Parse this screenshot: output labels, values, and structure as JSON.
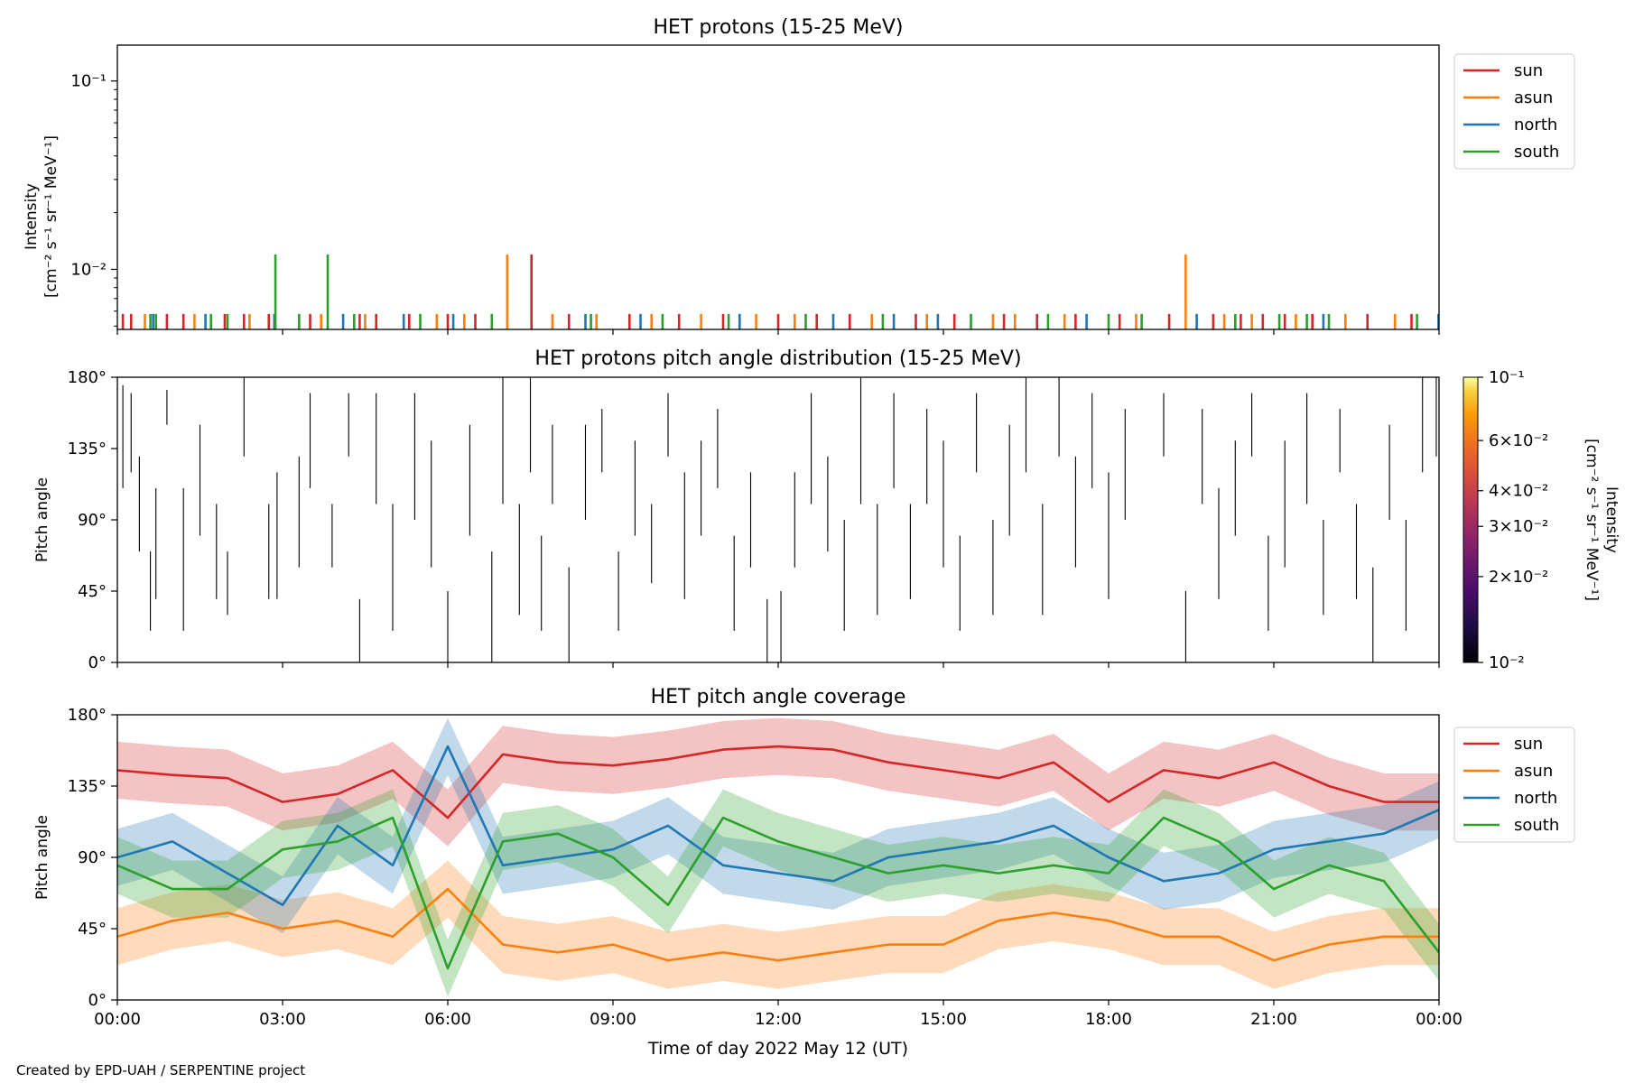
{
  "footer": "Created by EPD-UAH / SERPENTINE project",
  "xaxis": {
    "label": "Time of day 2022 May 12 (UT)",
    "range_hours": [
      0,
      24
    ],
    "ticks": [
      0,
      3,
      6,
      9,
      12,
      15,
      18,
      21,
      24
    ],
    "tick_labels": [
      "00:00",
      "03:00",
      "06:00",
      "09:00",
      "12:00",
      "15:00",
      "18:00",
      "21:00",
      "00:00"
    ]
  },
  "chart_data": [
    {
      "type": "line",
      "title": "HET protons (15-25 MeV)",
      "ylabel_lines": [
        "Intensity",
        "[cm⁻² s⁻¹ sr⁻¹ MeV⁻¹]"
      ],
      "yscale": "log",
      "ylim": [
        0.0048,
        0.155
      ],
      "ytick_labels": [
        {
          "value": 0.1,
          "label": "10⁻¹"
        },
        {
          "value": 0.01,
          "label": "10⁻²"
        }
      ],
      "legend_position": "outside-right-top",
      "baseline_level": 0.0057,
      "series": [
        {
          "name": "sun",
          "color": "#d62728",
          "spikes": [
            [
              0.1,
              0.0058
            ],
            [
              0.25,
              0.0058
            ],
            [
              0.9,
              0.0058
            ],
            [
              1.2,
              0.0058
            ],
            [
              1.95,
              0.0058
            ],
            [
              2.3,
              0.0058
            ],
            [
              2.75,
              0.0058
            ],
            [
              3.5,
              0.0058
            ],
            [
              4.4,
              0.0058
            ],
            [
              4.7,
              0.0058
            ],
            [
              5.3,
              0.0058
            ],
            [
              6.0,
              0.0058
            ],
            [
              6.5,
              0.0058
            ],
            [
              7.52,
              0.012
            ],
            [
              8.2,
              0.0058
            ],
            [
              9.3,
              0.0058
            ],
            [
              10.2,
              0.0058
            ],
            [
              11.0,
              0.0058
            ],
            [
              12.0,
              0.0058
            ],
            [
              12.7,
              0.0058
            ],
            [
              13.3,
              0.0058
            ],
            [
              14.5,
              0.0058
            ],
            [
              15.2,
              0.0058
            ],
            [
              16.1,
              0.0058
            ],
            [
              16.7,
              0.0058
            ],
            [
              17.4,
              0.0058
            ],
            [
              18.2,
              0.0058
            ],
            [
              19.1,
              0.0058
            ],
            [
              19.9,
              0.0058
            ],
            [
              20.4,
              0.0058
            ],
            [
              20.8,
              0.0058
            ],
            [
              21.2,
              0.0058
            ],
            [
              21.7,
              0.0058
            ],
            [
              22.7,
              0.0058
            ],
            [
              23.5,
              0.0058
            ]
          ]
        },
        {
          "name": "asun",
          "color": "#ff7f0e",
          "spikes": [
            [
              0.5,
              0.0058
            ],
            [
              1.4,
              0.0058
            ],
            [
              2.4,
              0.0058
            ],
            [
              3.7,
              0.0058
            ],
            [
              4.5,
              0.0058
            ],
            [
              5.8,
              0.0058
            ],
            [
              6.3,
              0.0058
            ],
            [
              7.08,
              0.012
            ],
            [
              7.9,
              0.0058
            ],
            [
              8.7,
              0.0058
            ],
            [
              9.7,
              0.0058
            ],
            [
              10.6,
              0.0058
            ],
            [
              11.6,
              0.0058
            ],
            [
              12.3,
              0.0058
            ],
            [
              13.7,
              0.0058
            ],
            [
              14.7,
              0.0058
            ],
            [
              15.9,
              0.0058
            ],
            [
              16.3,
              0.0058
            ],
            [
              17.2,
              0.0058
            ],
            [
              18.5,
              0.0058
            ],
            [
              19.4,
              0.012
            ],
            [
              20.1,
              0.0058
            ],
            [
              20.6,
              0.0058
            ],
            [
              21.4,
              0.0058
            ],
            [
              22.3,
              0.0058
            ],
            [
              23.2,
              0.0058
            ]
          ]
        },
        {
          "name": "north",
          "color": "#1f77b4",
          "spikes": [
            [
              0.65,
              0.0058
            ],
            [
              1.6,
              0.0058
            ],
            [
              2.85,
              0.0058
            ],
            [
              4.1,
              0.0058
            ],
            [
              5.2,
              0.0058
            ],
            [
              6.1,
              0.0058
            ],
            [
              8.5,
              0.0058
            ],
            [
              9.5,
              0.0058
            ],
            [
              11.3,
              0.0058
            ],
            [
              13.0,
              0.0058
            ],
            [
              14.1,
              0.0058
            ],
            [
              14.9,
              0.0058
            ],
            [
              17.6,
              0.0058
            ],
            [
              19.6,
              0.0058
            ],
            [
              21.9,
              0.0058
            ],
            [
              23.99,
              0.0058
            ]
          ]
        },
        {
          "name": "south",
          "color": "#2ca02c",
          "spikes": [
            [
              0.6,
              0.0058
            ],
            [
              0.7,
              0.0058
            ],
            [
              1.7,
              0.0058
            ],
            [
              2.0,
              0.0058
            ],
            [
              2.87,
              0.012
            ],
            [
              3.3,
              0.0058
            ],
            [
              3.82,
              0.012
            ],
            [
              4.3,
              0.0058
            ],
            [
              5.5,
              0.0058
            ],
            [
              6.8,
              0.0058
            ],
            [
              8.6,
              0.0058
            ],
            [
              9.9,
              0.0058
            ],
            [
              11.1,
              0.0058
            ],
            [
              12.5,
              0.0058
            ],
            [
              13.9,
              0.0058
            ],
            [
              15.5,
              0.0058
            ],
            [
              16.9,
              0.0058
            ],
            [
              18.0,
              0.0058
            ],
            [
              18.6,
              0.0058
            ],
            [
              20.3,
              0.0058
            ],
            [
              21.1,
              0.0058
            ],
            [
              21.6,
              0.0058
            ],
            [
              22.0,
              0.0058
            ],
            [
              23.6,
              0.0058
            ]
          ]
        }
      ]
    },
    {
      "type": "heatmap",
      "title": "HET protons pitch angle distribution (15-25 MeV)",
      "ylabel": "Pitch angle",
      "ylim": [
        0,
        180
      ],
      "yticks": [
        0,
        45,
        90,
        135,
        180
      ],
      "ytick_labels": [
        "0°",
        "45°",
        "90°",
        "135°",
        "180°"
      ],
      "colorbar": {
        "label_lines": [
          "Intensity",
          "[cm⁻² s⁻¹ sr⁻¹ MeV⁻¹]"
        ],
        "scale": "log",
        "range": [
          0.01,
          0.1
        ],
        "colormap": "inferno",
        "tick_labels": [
          {
            "value": 0.1,
            "label": "10⁻¹"
          },
          {
            "value": 0.06,
            "label": "6×10⁻²"
          },
          {
            "value": 0.04,
            "label": "4×10⁻²"
          },
          {
            "value": 0.03,
            "label": "3×10⁻²"
          },
          {
            "value": 0.02,
            "label": "2×10⁻²"
          },
          {
            "value": 0.01,
            "label": "10⁻²"
          }
        ]
      },
      "cell_color": "#000000",
      "segments": [
        [
          0.1,
          110,
          175
        ],
        [
          0.25,
          120,
          170
        ],
        [
          0.4,
          70,
          130
        ],
        [
          0.6,
          20,
          70
        ],
        [
          0.7,
          40,
          110
        ],
        [
          0.9,
          150,
          172
        ],
        [
          1.2,
          20,
          110
        ],
        [
          1.5,
          80,
          150
        ],
        [
          1.8,
          40,
          100
        ],
        [
          2.0,
          30,
          70
        ],
        [
          2.3,
          130,
          180
        ],
        [
          2.75,
          40,
          100
        ],
        [
          2.9,
          40,
          120
        ],
        [
          3.3,
          60,
          130
        ],
        [
          3.5,
          110,
          170
        ],
        [
          3.9,
          60,
          100
        ],
        [
          4.2,
          130,
          170
        ],
        [
          4.4,
          0,
          40
        ],
        [
          4.7,
          100,
          170
        ],
        [
          5.0,
          20,
          100
        ],
        [
          5.4,
          90,
          170
        ],
        [
          5.7,
          60,
          140
        ],
        [
          6.0,
          0,
          45
        ],
        [
          6.4,
          80,
          150
        ],
        [
          6.8,
          0,
          70
        ],
        [
          7.0,
          100,
          180
        ],
        [
          7.3,
          30,
          100
        ],
        [
          7.5,
          120,
          180
        ],
        [
          7.7,
          20,
          80
        ],
        [
          7.9,
          100,
          150
        ],
        [
          8.2,
          0,
          60
        ],
        [
          8.5,
          90,
          150
        ],
        [
          8.8,
          120,
          160
        ],
        [
          9.1,
          20,
          70
        ],
        [
          9.4,
          80,
          140
        ],
        [
          9.7,
          50,
          100
        ],
        [
          10.0,
          130,
          170
        ],
        [
          10.3,
          40,
          120
        ],
        [
          10.6,
          80,
          140
        ],
        [
          10.9,
          110,
          160
        ],
        [
          11.2,
          20,
          80
        ],
        [
          11.5,
          60,
          120
        ],
        [
          11.8,
          0,
          40
        ],
        [
          12.05,
          0,
          45
        ],
        [
          12.3,
          60,
          120
        ],
        [
          12.6,
          100,
          170
        ],
        [
          12.9,
          70,
          130
        ],
        [
          13.2,
          20,
          90
        ],
        [
          13.5,
          100,
          180
        ],
        [
          13.8,
          30,
          100
        ],
        [
          14.1,
          110,
          170
        ],
        [
          14.4,
          40,
          100
        ],
        [
          14.7,
          100,
          160
        ],
        [
          15.0,
          60,
          140
        ],
        [
          15.3,
          20,
          80
        ],
        [
          15.6,
          120,
          170
        ],
        [
          15.9,
          30,
          90
        ],
        [
          16.2,
          80,
          150
        ],
        [
          16.5,
          120,
          180
        ],
        [
          16.8,
          30,
          100
        ],
        [
          17.1,
          130,
          180
        ],
        [
          17.4,
          60,
          130
        ],
        [
          17.7,
          110,
          170
        ],
        [
          18.0,
          40,
          120
        ],
        [
          18.3,
          90,
          160
        ],
        [
          19.0,
          130,
          170
        ],
        [
          19.4,
          0,
          45
        ],
        [
          19.7,
          100,
          160
        ],
        [
          20.0,
          40,
          110
        ],
        [
          20.3,
          80,
          140
        ],
        [
          20.6,
          130,
          170
        ],
        [
          20.9,
          20,
          80
        ],
        [
          21.2,
          60,
          140
        ],
        [
          21.6,
          100,
          170
        ],
        [
          21.9,
          30,
          90
        ],
        [
          22.2,
          120,
          160
        ],
        [
          22.5,
          40,
          100
        ],
        [
          22.8,
          0,
          60
        ],
        [
          23.1,
          90,
          150
        ],
        [
          23.4,
          20,
          90
        ],
        [
          23.7,
          120,
          180
        ],
        [
          23.95,
          130,
          180
        ]
      ]
    },
    {
      "type": "area",
      "title": "HET pitch angle coverage",
      "ylabel": "Pitch angle",
      "ylim": [
        0,
        180
      ],
      "yticks": [
        0,
        45,
        90,
        135,
        180
      ],
      "ytick_labels": [
        "0°",
        "45°",
        "90°",
        "135°",
        "180°"
      ],
      "legend_position": "outside-right-top",
      "band_half_width_deg": 18,
      "x_hours": [
        0,
        1,
        2,
        3,
        4,
        5,
        6,
        7,
        8,
        9,
        10,
        11,
        12,
        13,
        14,
        15,
        16,
        17,
        18,
        19,
        20,
        21,
        22,
        23,
        24
      ],
      "series": [
        {
          "name": "sun",
          "color": "#d62728",
          "values": [
            145,
            142,
            140,
            125,
            130,
            145,
            115,
            155,
            150,
            148,
            152,
            158,
            160,
            158,
            150,
            145,
            140,
            150,
            125,
            145,
            140,
            150,
            135,
            125,
            125
          ]
        },
        {
          "name": "asun",
          "color": "#ff7f0e",
          "values": [
            40,
            50,
            55,
            45,
            50,
            40,
            70,
            35,
            30,
            35,
            25,
            30,
            25,
            30,
            35,
            35,
            50,
            55,
            50,
            40,
            40,
            25,
            35,
            40,
            40
          ]
        },
        {
          "name": "north",
          "color": "#1f77b4",
          "values": [
            90,
            100,
            80,
            60,
            110,
            85,
            160,
            85,
            90,
            95,
            110,
            85,
            80,
            75,
            90,
            95,
            100,
            110,
            90,
            75,
            80,
            95,
            100,
            105,
            120
          ]
        },
        {
          "name": "south",
          "color": "#2ca02c",
          "values": [
            85,
            70,
            70,
            95,
            100,
            115,
            20,
            100,
            105,
            90,
            60,
            115,
            100,
            90,
            80,
            85,
            80,
            85,
            80,
            115,
            100,
            70,
            85,
            75,
            30
          ]
        }
      ]
    }
  ]
}
